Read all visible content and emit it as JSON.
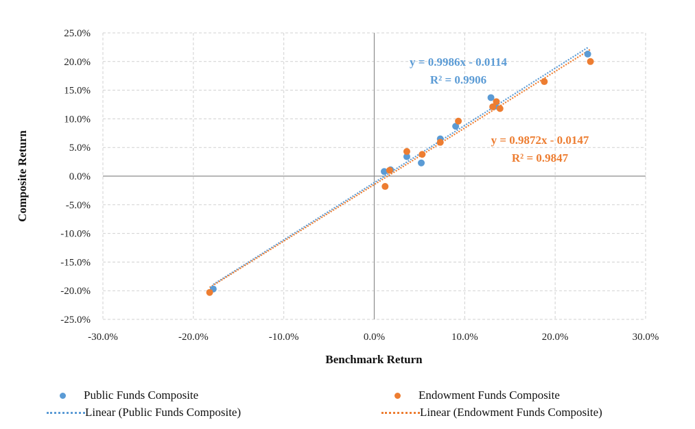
{
  "chart_data": {
    "type": "scatter",
    "xlabel": "Benchmark Return",
    "ylabel": "Composite  Return",
    "xlim": [
      -0.3,
      0.3
    ],
    "ylim": [
      -0.25,
      0.25
    ],
    "x_ticks": [
      -0.3,
      -0.2,
      -0.1,
      0.0,
      0.1,
      0.2,
      0.3
    ],
    "y_ticks": [
      0.25,
      0.2,
      0.15,
      0.1,
      0.05,
      0.0,
      -0.05,
      -0.1,
      -0.15,
      -0.2,
      -0.25
    ],
    "x_tick_labels": [
      "-30.0%",
      "-20.0%",
      "-10.0%",
      "0.0%",
      "10.0%",
      "20.0%",
      "30.0%"
    ],
    "y_tick_labels": [
      "25.0%",
      "20.0%",
      "15.0%",
      "10.0%",
      "5.0%",
      "0.0%",
      "-5.0%",
      "-10.0%",
      "-15.0%",
      "-20.0%",
      "-25.0%"
    ],
    "grid": "dashed",
    "legend_position": "bottom",
    "series": [
      {
        "name": "Public Funds Composite",
        "color": "#5B9BD5",
        "points": [
          [
            -0.178,
            -0.197
          ],
          [
            0.011,
            0.008
          ],
          [
            0.018,
            0.011
          ],
          [
            0.036,
            0.034
          ],
          [
            0.052,
            0.023
          ],
          [
            0.073,
            0.065
          ],
          [
            0.09,
            0.087
          ],
          [
            0.129,
            0.137
          ],
          [
            0.134,
            0.122
          ],
          [
            0.236,
            0.213
          ]
        ]
      },
      {
        "name": "Endowment Funds Composite",
        "color": "#ED7D31",
        "points": [
          [
            -0.182,
            -0.203
          ],
          [
            0.012,
            -0.018
          ],
          [
            0.017,
            0.01
          ],
          [
            0.036,
            0.043
          ],
          [
            0.053,
            0.038
          ],
          [
            0.073,
            0.059
          ],
          [
            0.093,
            0.096
          ],
          [
            0.131,
            0.121
          ],
          [
            0.135,
            0.13
          ],
          [
            0.139,
            0.118
          ],
          [
            0.188,
            0.165
          ],
          [
            0.239,
            0.2
          ]
        ]
      }
    ],
    "trendlines": [
      {
        "name": "Linear (Public Funds Composite)",
        "color": "#5B9BD5",
        "slope": 0.9986,
        "intercept": -0.0114,
        "x_range": [
          -0.178,
          0.236
        ],
        "equation": "y = 0.9986x - 0.0114",
        "r2": "R² = 0.9906"
      },
      {
        "name": "Linear (Endowment Funds Composite)",
        "color": "#ED7D31",
        "slope": 0.9872,
        "intercept": -0.0147,
        "x_range": [
          -0.182,
          0.239
        ],
        "equation": "y = 0.9872x - 0.0147",
        "r2": "R² = 0.9847"
      }
    ]
  }
}
